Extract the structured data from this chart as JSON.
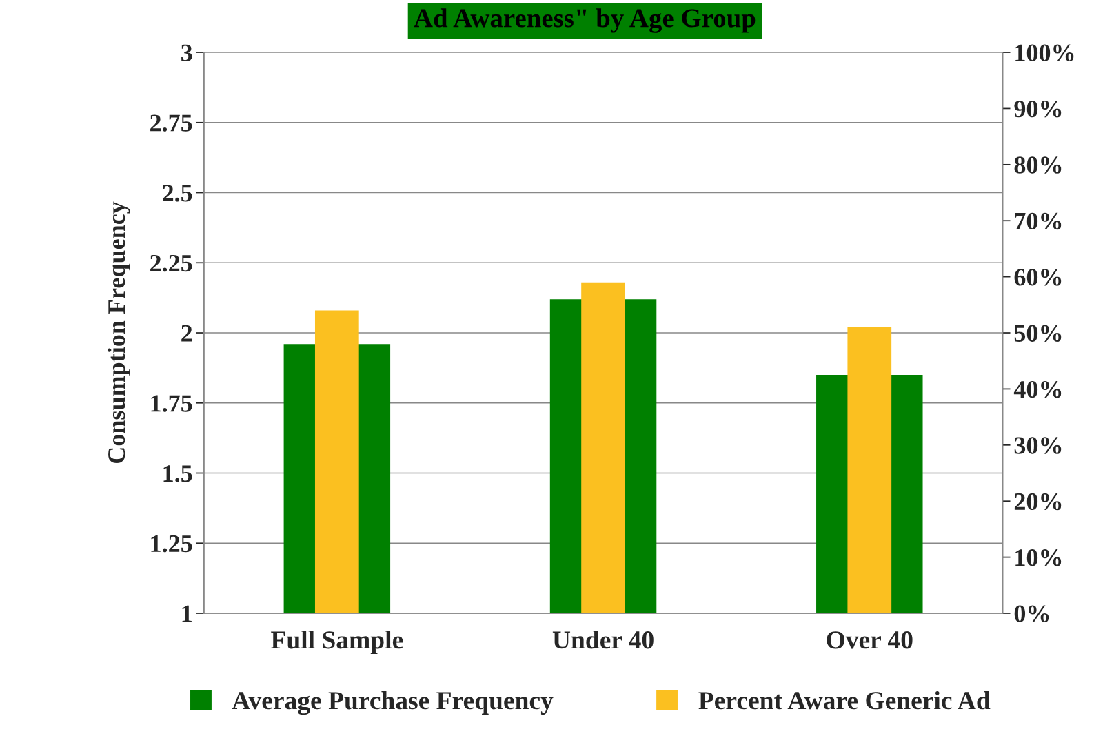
{
  "chart_data": {
    "type": "bar",
    "title": "Ad Awareness\" by Age Group",
    "ylabel": "Consumption Frequency",
    "categories": [
      "Full Sample",
      "Under 40",
      "Over 40"
    ],
    "series": [
      {
        "name": "Average Purchase Frequency",
        "color": "#008000",
        "values": [
          1.96,
          2.12,
          1.85
        ]
      },
      {
        "name": "Percent Aware Generic Ad",
        "color": "#fbc020",
        "values": [
          54,
          59,
          51
        ],
        "axis": "y2"
      }
    ],
    "ylim": [
      1,
      3
    ],
    "yticks": [
      1,
      1.25,
      1.5,
      1.75,
      2,
      2.25,
      2.5,
      2.75,
      3
    ],
    "y2lim": [
      0,
      100
    ],
    "y2ticks": [
      {
        "value": 0,
        "label": "0%"
      },
      {
        "value": 10,
        "label": "10%"
      },
      {
        "value": 20,
        "label": "20%"
      },
      {
        "value": 30,
        "label": "30%"
      },
      {
        "value": 40,
        "label": "40%"
      },
      {
        "value": 50,
        "label": "50%"
      },
      {
        "value": 60,
        "label": "60%"
      },
      {
        "value": 70,
        "label": "70%"
      },
      {
        "value": 80,
        "label": "80%"
      },
      {
        "value": 90,
        "label": "90%"
      },
      {
        "value": 100,
        "label": "100%"
      }
    ],
    "grid": "y",
    "legend": "bottom"
  }
}
